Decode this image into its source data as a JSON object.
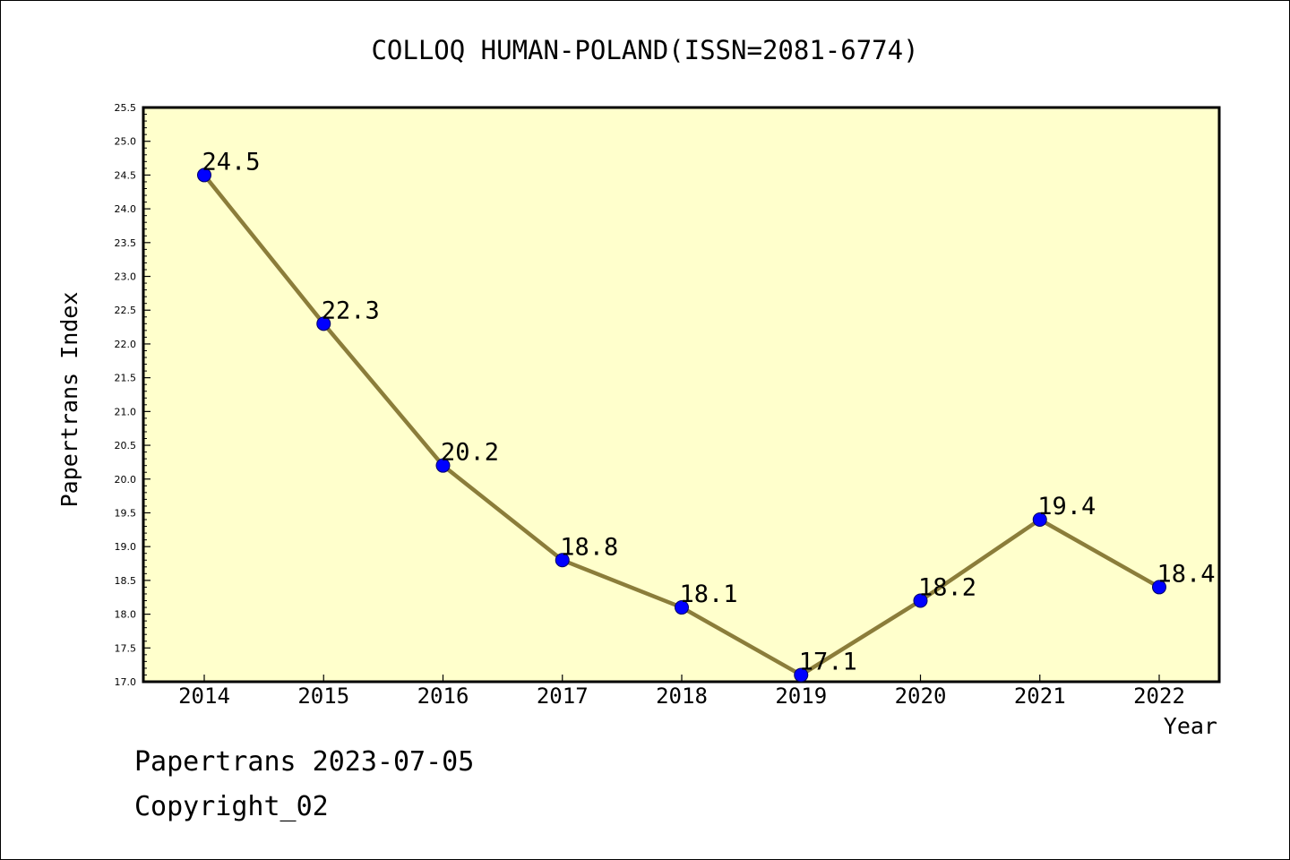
{
  "colors": {
    "background": "#ffffff",
    "plot_background": "#ffffcc",
    "line": "#8b7d3a",
    "marker": "#0000ff",
    "axis": "#000000"
  },
  "footer": {
    "date_line": "Papertrans 2023-07-05",
    "copyright": "Copyright_02"
  },
  "chart_data": {
    "type": "line",
    "title": "COLLOQ HUMAN-POLAND(ISSN=2081-6774)",
    "xlabel": "Year",
    "ylabel": "Papertrans Index",
    "x": [
      "2014",
      "2015",
      "2016",
      "2017",
      "2018",
      "2019",
      "2020",
      "2021",
      "2022"
    ],
    "series": [
      {
        "values": [
          24.5,
          22.3,
          20.2,
          18.8,
          18.1,
          17.1,
          18.2,
          19.4,
          18.4
        ],
        "labels": [
          "24.5",
          "22.3",
          "20.2",
          "18.8",
          "18.1",
          "17.1",
          "18.2",
          "19.4",
          "18.4"
        ]
      }
    ],
    "ylim": [
      17.0,
      25.5
    ],
    "yticks": [
      "17.0",
      "17.5",
      "18.0",
      "18.5",
      "19.0",
      "19.5",
      "20.0",
      "20.5",
      "21.0",
      "21.5",
      "22.0",
      "22.5",
      "23.0",
      "23.5",
      "24.0",
      "24.5",
      "25.0",
      "25.5"
    ],
    "grid": false,
    "legend": "none"
  }
}
